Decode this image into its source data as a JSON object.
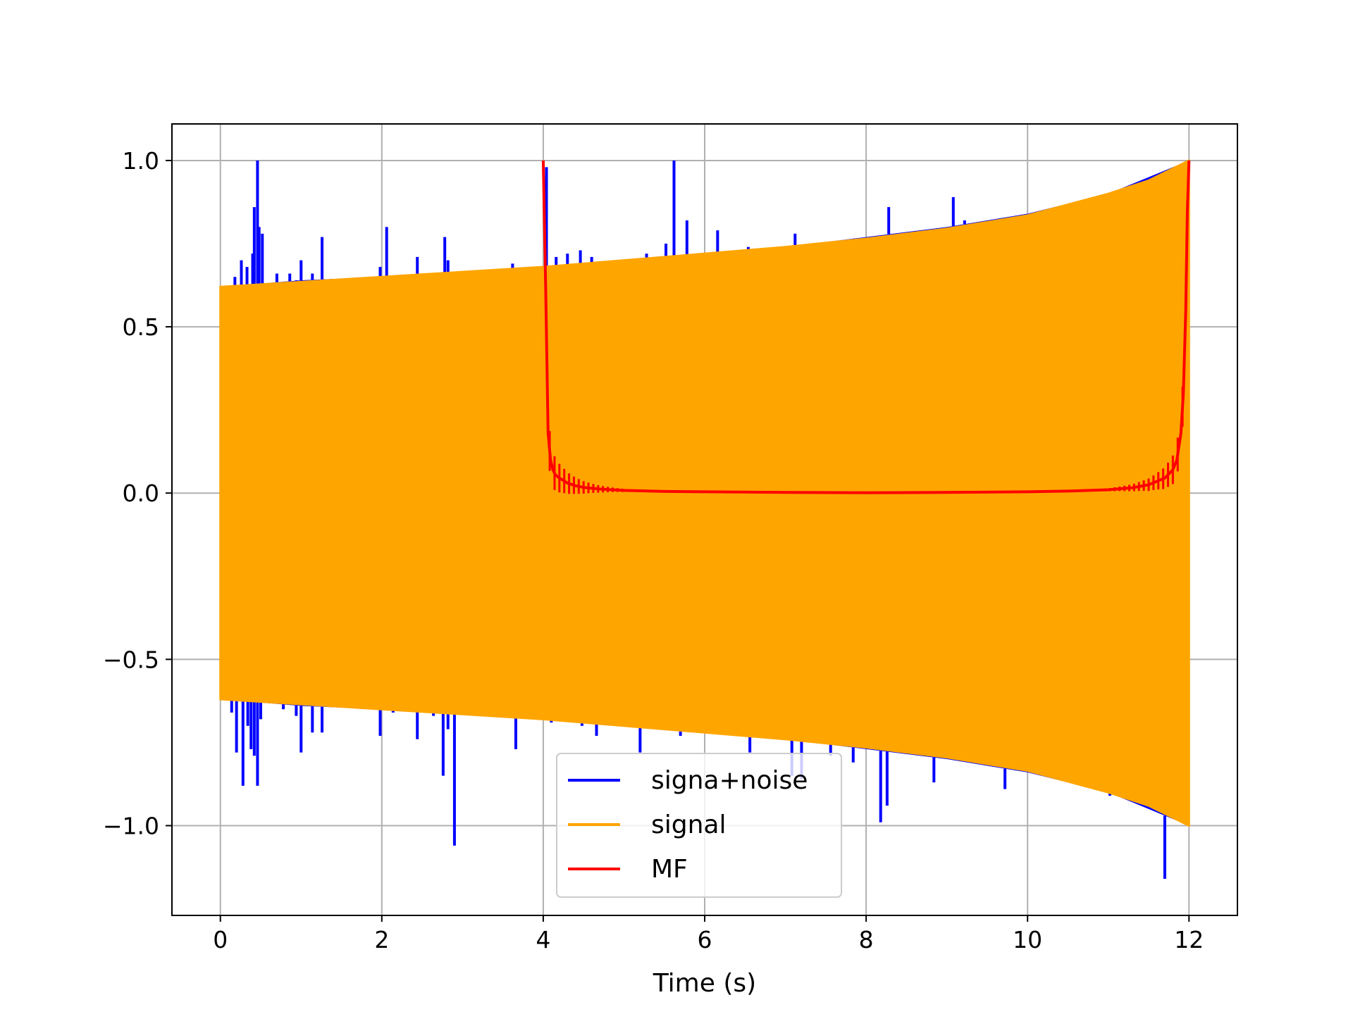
{
  "chart_data": {
    "type": "line",
    "title": "",
    "xlabel": "Time (s)",
    "ylabel": "",
    "xlim": [
      -0.6,
      12.6
    ],
    "ylim": [
      -1.27,
      1.11
    ],
    "grid": true,
    "legend_position": "lower-center",
    "x_ticks": [
      0,
      2,
      4,
      6,
      8,
      10,
      12
    ],
    "y_ticks": [
      1.0,
      0.5,
      0.0,
      -0.5,
      -1.0
    ],
    "x_tick_labels": [
      "0",
      "2",
      "4",
      "6",
      "8",
      "10",
      "12"
    ],
    "y_tick_labels": [
      "1.0",
      "0.5",
      "0.0",
      "−0.5",
      "−1.0"
    ],
    "series": [
      {
        "name": "signa+noise",
        "color": "#0000ff",
        "envelope": {
          "x": [
            0,
            1,
            2,
            3,
            4,
            5,
            6,
            7,
            8,
            9,
            10,
            11,
            12
          ],
          "upper": [
            0.62,
            0.64,
            0.65,
            0.66,
            0.68,
            0.7,
            0.72,
            0.74,
            0.77,
            0.8,
            0.84,
            0.9,
            1.0
          ],
          "lower": [
            -0.62,
            -0.64,
            -0.65,
            -0.66,
            -0.68,
            -0.7,
            -0.72,
            -0.74,
            -0.77,
            -0.8,
            -0.84,
            -0.9,
            -1.0
          ]
        },
        "spikes_up": [
          [
            0.18,
            0.65
          ],
          [
            0.26,
            0.7
          ],
          [
            0.33,
            0.68
          ],
          [
            0.4,
            0.72
          ],
          [
            0.42,
            0.86
          ],
          [
            0.46,
            1.0
          ],
          [
            0.48,
            0.8
          ],
          [
            0.52,
            0.78
          ],
          [
            0.7,
            0.66
          ],
          [
            0.86,
            0.66
          ],
          [
            0.94,
            0.64
          ],
          [
            1.0,
            0.7
          ],
          [
            1.14,
            0.66
          ],
          [
            1.26,
            0.77
          ],
          [
            1.5,
            0.64
          ],
          [
            1.98,
            0.68
          ],
          [
            2.06,
            0.8
          ],
          [
            2.44,
            0.71
          ],
          [
            2.78,
            0.77
          ],
          [
            2.82,
            0.7
          ],
          [
            3.62,
            0.69
          ],
          [
            3.74,
            0.67
          ],
          [
            4.04,
            0.98
          ],
          [
            4.16,
            0.71
          ],
          [
            4.3,
            0.72
          ],
          [
            4.46,
            0.73
          ],
          [
            4.6,
            0.71
          ],
          [
            5.12,
            0.7
          ],
          [
            5.28,
            0.72
          ],
          [
            5.52,
            0.75
          ],
          [
            5.62,
            1.0
          ],
          [
            5.78,
            0.82
          ],
          [
            6.16,
            0.79
          ],
          [
            6.54,
            0.74
          ],
          [
            7.12,
            0.78
          ],
          [
            7.86,
            0.71
          ],
          [
            8.28,
            0.86
          ],
          [
            9.08,
            0.89
          ],
          [
            9.22,
            0.82
          ]
        ],
        "spikes_down": [
          [
            0.04,
            -0.56
          ],
          [
            0.14,
            -0.66
          ],
          [
            0.2,
            -0.78
          ],
          [
            0.28,
            -0.88
          ],
          [
            0.34,
            -0.7
          ],
          [
            0.38,
            -0.77
          ],
          [
            0.42,
            -0.79
          ],
          [
            0.46,
            -0.88
          ],
          [
            0.5,
            -0.68
          ],
          [
            0.78,
            -0.65
          ],
          [
            0.94,
            -0.67
          ],
          [
            1.0,
            -0.78
          ],
          [
            1.14,
            -0.72
          ],
          [
            1.26,
            -0.72
          ],
          [
            1.98,
            -0.73
          ],
          [
            2.14,
            -0.66
          ],
          [
            2.44,
            -0.74
          ],
          [
            2.64,
            -0.67
          ],
          [
            2.76,
            -0.85
          ],
          [
            2.82,
            -0.71
          ],
          [
            2.9,
            -1.06
          ],
          [
            3.4,
            -0.67
          ],
          [
            3.66,
            -0.77
          ],
          [
            3.9,
            -0.68
          ],
          [
            4.1,
            -0.69
          ],
          [
            4.48,
            -0.7
          ],
          [
            4.66,
            -0.73
          ],
          [
            5.2,
            -0.78
          ],
          [
            5.7,
            -0.73
          ],
          [
            6.56,
            -0.78
          ],
          [
            7.08,
            -0.85
          ],
          [
            7.2,
            -0.86
          ],
          [
            7.56,
            -0.79
          ],
          [
            7.84,
            -0.81
          ],
          [
            8.18,
            -0.99
          ],
          [
            8.26,
            -0.94
          ],
          [
            8.84,
            -0.87
          ],
          [
            9.72,
            -0.89
          ],
          [
            11.02,
            -0.91
          ],
          [
            11.7,
            -1.16
          ]
        ]
      },
      {
        "name": "signal",
        "color": "#ffa500",
        "envelope": {
          "x": [
            0,
            1,
            2,
            3,
            4,
            5,
            6,
            7,
            8,
            9,
            10,
            11,
            11.5,
            12
          ],
          "upper": [
            0.62,
            0.635,
            0.65,
            0.665,
            0.68,
            0.7,
            0.72,
            0.74,
            0.765,
            0.795,
            0.835,
            0.9,
            0.94,
            1.0
          ],
          "lower": [
            -0.62,
            -0.635,
            -0.65,
            -0.665,
            -0.68,
            -0.7,
            -0.72,
            -0.74,
            -0.765,
            -0.795,
            -0.835,
            -0.9,
            -0.94,
            -1.0
          ]
        }
      },
      {
        "name": "MF",
        "color": "#ff0000",
        "x": [
          4.0,
          4.03,
          4.06,
          4.09,
          4.12,
          4.15,
          4.2,
          4.25,
          4.3,
          4.4,
          4.5,
          4.7,
          5.0,
          5.5,
          6.0,
          7.0,
          8.0,
          9.0,
          10.0,
          10.5,
          11.0,
          11.3,
          11.5,
          11.7,
          11.8,
          11.85,
          11.9,
          11.93,
          11.96,
          11.98,
          12.0
        ],
        "y": [
          1.0,
          0.62,
          0.18,
          0.1,
          0.07,
          0.055,
          0.045,
          0.038,
          0.03,
          0.022,
          0.017,
          0.012,
          0.008,
          0.005,
          0.004,
          0.002,
          0.001,
          0.002,
          0.004,
          0.006,
          0.01,
          0.016,
          0.025,
          0.045,
          0.07,
          0.1,
          0.18,
          0.3,
          0.55,
          0.85,
          1.0
        ]
      }
    ]
  }
}
